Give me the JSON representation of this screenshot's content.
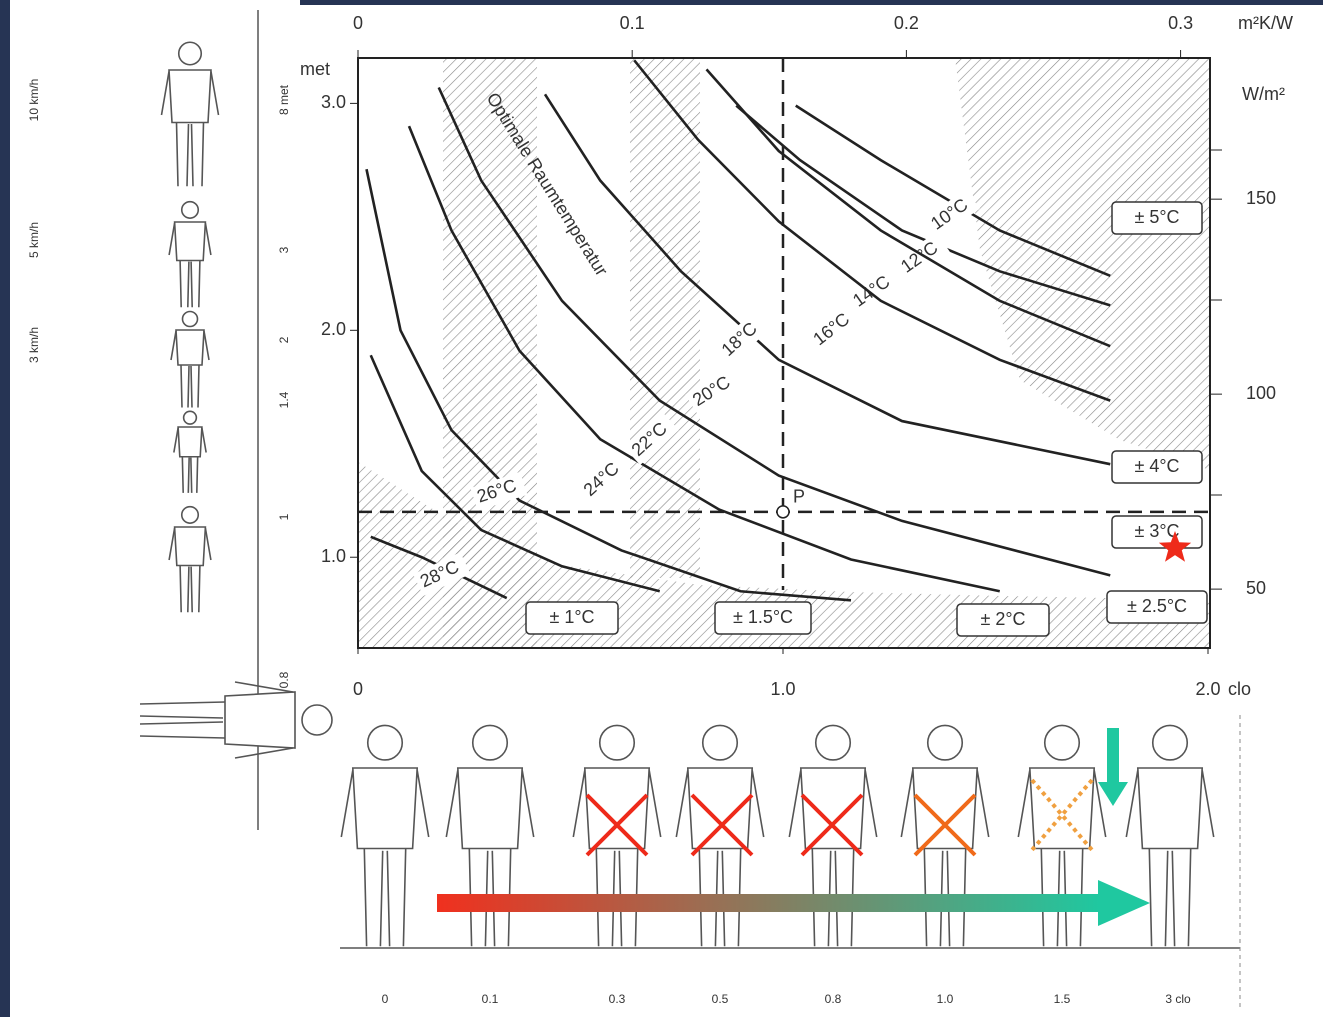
{
  "chart_data": {
    "type": "line",
    "annotation": "Optimale Raumtemperatur",
    "y_label": "met",
    "x_label": "clo",
    "x2_label": "m²K/W",
    "y2_label": "W/m²",
    "xlim": [
      0,
      2.0
    ],
    "xticks": [
      0,
      {
        "value": 1,
        "label": "1.0"
      },
      {
        "value": 2,
        "label": "2.0"
      }
    ],
    "ylim": [
      0.6,
      3.2
    ],
    "yticks": [
      {
        "value": 1,
        "label": "1.0"
      },
      {
        "value": 2,
        "label": "2.0"
      },
      {
        "value": 3,
        "label": "3.0"
      }
    ],
    "x2lim": [
      0,
      0.31
    ],
    "x2ticks": [
      0,
      0.1,
      0.2,
      0.3
    ],
    "y2lim": [
      34.9,
      186.2
    ],
    "y2ticks": [
      50,
      100,
      150
    ],
    "series": [
      {
        "name": "10°C",
        "color": "#222",
        "x": [
          1.03,
          1.23,
          1.51,
          1.77
        ],
        "values": [
          2.99,
          2.75,
          2.44,
          2.24
        ]
      },
      {
        "name": "12°C",
        "color": "#222",
        "x": [
          0.89,
          1.04,
          1.28,
          1.51,
          1.77
        ],
        "values": [
          2.99,
          2.75,
          2.44,
          2.26,
          2.11
        ]
      },
      {
        "name": "14°C",
        "color": "#222",
        "x": [
          0.82,
          0.99,
          1.23,
          1.51,
          1.77
        ],
        "values": [
          3.15,
          2.79,
          2.44,
          2.13,
          1.93
        ]
      },
      {
        "name": "16°C",
        "color": "#222",
        "x": [
          0.65,
          0.8,
          0.99,
          1.23,
          1.51,
          1.77
        ],
        "values": [
          3.19,
          2.84,
          2.48,
          2.13,
          1.87,
          1.69
        ]
      },
      {
        "name": "18°C",
        "color": "#222",
        "x": [
          0.44,
          0.57,
          0.76,
          0.99,
          1.28,
          1.77
        ],
        "values": [
          3.04,
          2.66,
          2.26,
          1.87,
          1.6,
          1.41
        ]
      },
      {
        "name": "20°C",
        "color": "#222",
        "x": [
          0.19,
          0.29,
          0.48,
          0.71,
          0.99,
          1.28,
          1.77
        ],
        "values": [
          3.07,
          2.66,
          2.13,
          1.69,
          1.36,
          1.16,
          0.92
        ]
      },
      {
        "name": "22°C",
        "color": "#222",
        "x": [
          0.12,
          0.22,
          0.38,
          0.57,
          0.85,
          1.16,
          1.51
        ],
        "values": [
          2.9,
          2.44,
          1.91,
          1.52,
          1.21,
          0.99,
          0.85
        ]
      },
      {
        "name": "24°C",
        "color": "#222",
        "x": [
          0.02,
          0.1,
          0.22,
          0.38,
          0.62,
          0.9,
          1.16
        ],
        "values": [
          2.71,
          2.0,
          1.56,
          1.25,
          1.03,
          0.85,
          0.81
        ]
      },
      {
        "name": "26°C",
        "color": "#222",
        "x": [
          0.03,
          0.15,
          0.29,
          0.48,
          0.71
        ],
        "values": [
          1.89,
          1.38,
          1.12,
          0.96,
          0.85
        ]
      },
      {
        "name": "28°C",
        "color": "#222",
        "x": [
          0.03,
          0.15,
          0.35
        ],
        "values": [
          1.09,
          1.0,
          0.82
        ]
      }
    ],
    "reference_point": {
      "label": "P",
      "x": 1.0,
      "y": 1.2
    },
    "tolerance_labels": [
      "± 5°C",
      "± 4°C",
      "± 3°C",
      "± 2.5°C",
      "± 2°C",
      "± 1.5°C",
      "± 1°C"
    ]
  },
  "activity_scale": {
    "speeds": [
      "10 km/h",
      "5 km/h",
      "3 km/h"
    ],
    "met_labels": [
      "8 met",
      "3",
      "2",
      "1.4",
      "1",
      "0.8"
    ]
  },
  "clothing_scale": {
    "labels": [
      "0",
      "0.1",
      "0.3",
      "0.5",
      "0.8",
      "1.0",
      "1.5",
      "3 clo"
    ]
  }
}
